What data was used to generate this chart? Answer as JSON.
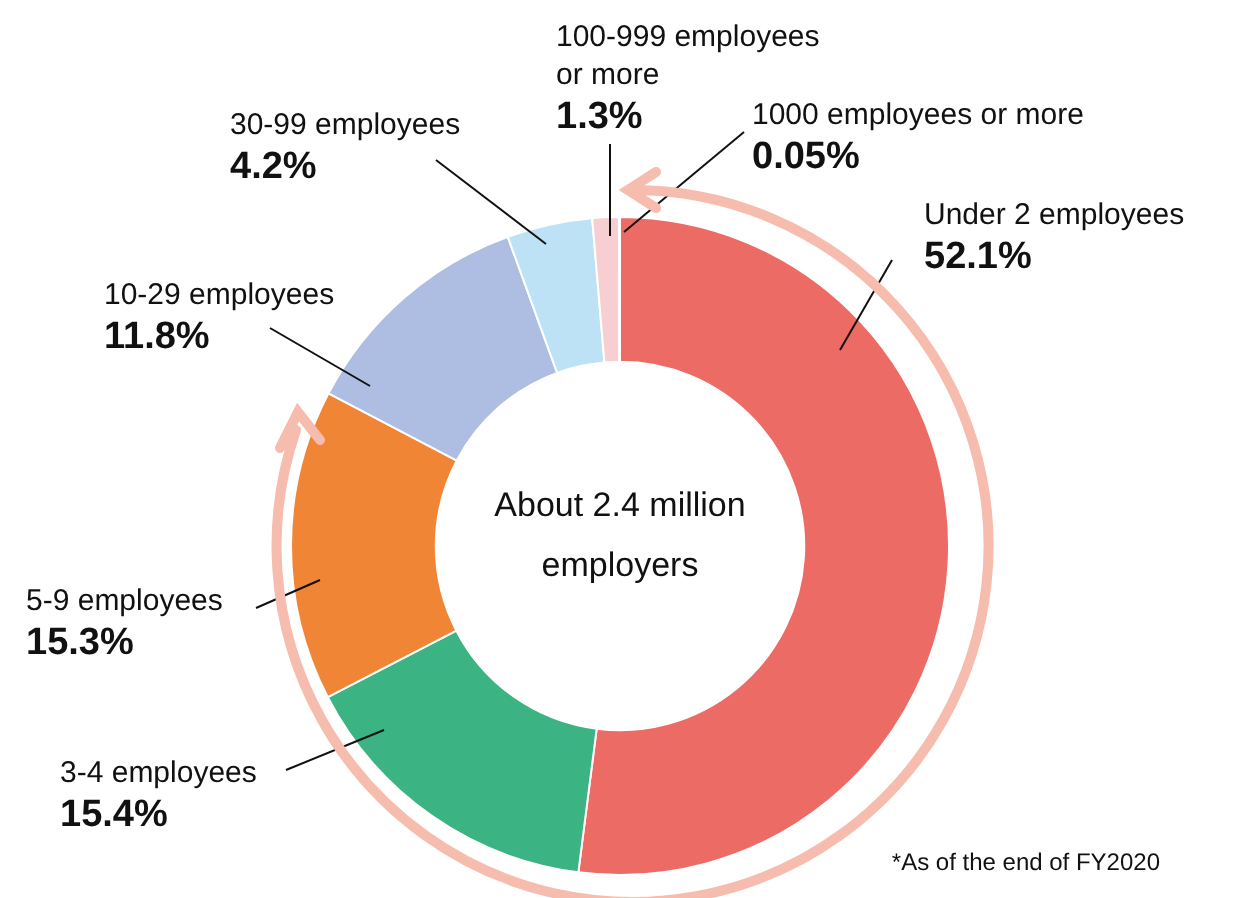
{
  "chart_data": {
    "type": "donut",
    "categories": [
      "Under 2 employees",
      "3-4 employees",
      "5-9 employees",
      "10-29 employees",
      "30-99 employees",
      "100-999 employees or more",
      "1000 employees or more"
    ],
    "values": [
      52.1,
      15.4,
      15.3,
      11.8,
      4.2,
      1.3,
      0.05
    ],
    "value_labels": [
      "52.1%",
      "15.4%",
      "15.3%",
      "11.8%",
      "4.2%",
      "1.3%",
      "0.05%"
    ],
    "colors": [
      "#ec6b64",
      "#3bb383",
      "#ef8535",
      "#aebee2",
      "#bde2f6",
      "#f7cfd3",
      "#f3dcc0"
    ],
    "annotations": [
      "About 2.4 million employers",
      "*As of the end of FY2020"
    ],
    "legend": false
  }
}
